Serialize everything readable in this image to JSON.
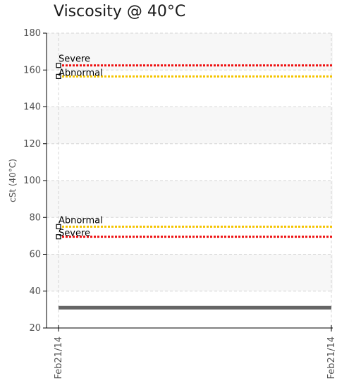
{
  "chart_data": {
    "type": "line",
    "title": "Viscosity @ 40°C",
    "ylabel": "cSt (40°C)",
    "xlabel": "",
    "ylim": [
      20,
      180
    ],
    "yticks": [
      20,
      40,
      60,
      80,
      100,
      120,
      140,
      160,
      180
    ],
    "x": [
      "Feb21/14",
      "Feb21/14"
    ],
    "grid": true,
    "series": [
      {
        "values": [
          31,
          31
        ],
        "color": "#666666",
        "style": "solid"
      }
    ],
    "thresholds": [
      {
        "label": "Severe",
        "value": 162.5,
        "color": "#ee1111"
      },
      {
        "label": "Abnormal",
        "value": 156.5,
        "color": "#f5c400"
      },
      {
        "label": "Abnormal",
        "value": 75,
        "color": "#f5c400"
      },
      {
        "label": "Severe",
        "value": 69.5,
        "color": "#ee1111"
      }
    ]
  }
}
